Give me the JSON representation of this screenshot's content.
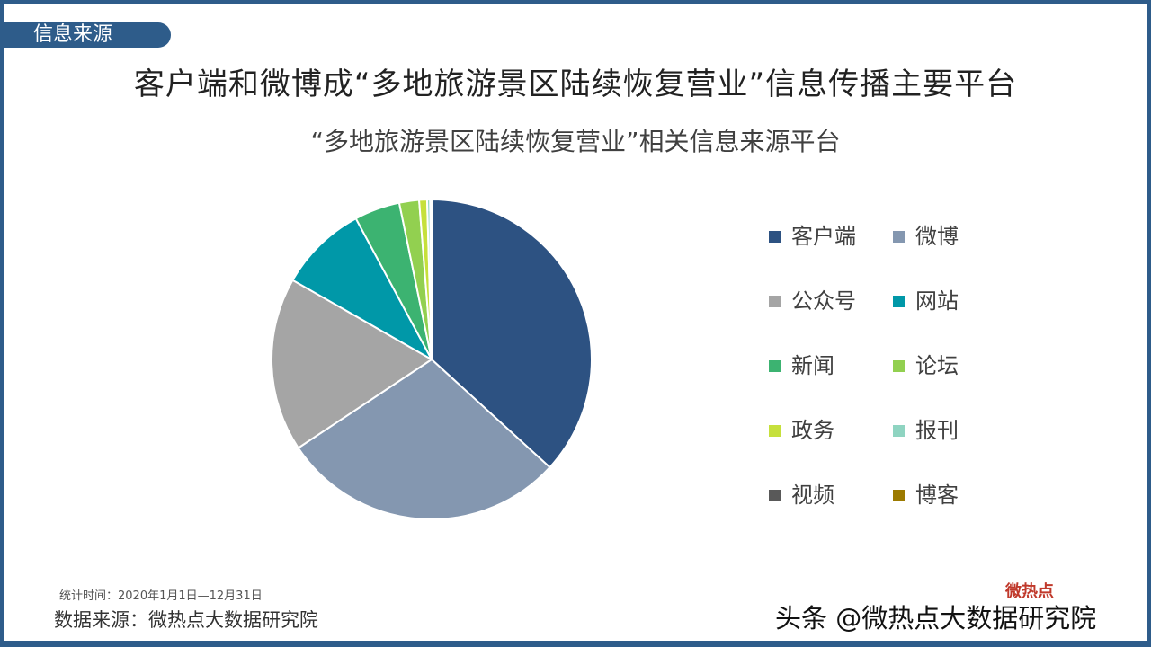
{
  "header": {
    "section_tag": "信息来源",
    "headline": "客户端和微博成“多地旅游景区陆续恢复营业”信息传播主要平台"
  },
  "chart_data": {
    "type": "pie",
    "title": "“多地旅游景区陆续恢复营业”相关信息来源平台",
    "categories": [
      "客户端",
      "微博",
      "公众号",
      "网站",
      "新闻",
      "论坛",
      "政务",
      "报刊",
      "视频",
      "博客"
    ],
    "values": [
      36.8,
      28.9,
      17.6,
      8.9,
      4.6,
      2.0,
      0.8,
      0.3,
      0.1,
      0.05
    ],
    "colors": [
      "#2d5282",
      "#8497b0",
      "#a5a5a5",
      "#0098a8",
      "#3cb371",
      "#92d050",
      "#c6e03c",
      "#8fd4c1",
      "#595959",
      "#9c7a00"
    ],
    "legend": "right"
  },
  "footer": {
    "stat_time": "统计时间：2020年1月1日—12月31日",
    "data_source": "数据来源：微热点大数据研究院",
    "watermark_logo": "微热点",
    "watermark": "头条 @微热点大数据研究院"
  }
}
